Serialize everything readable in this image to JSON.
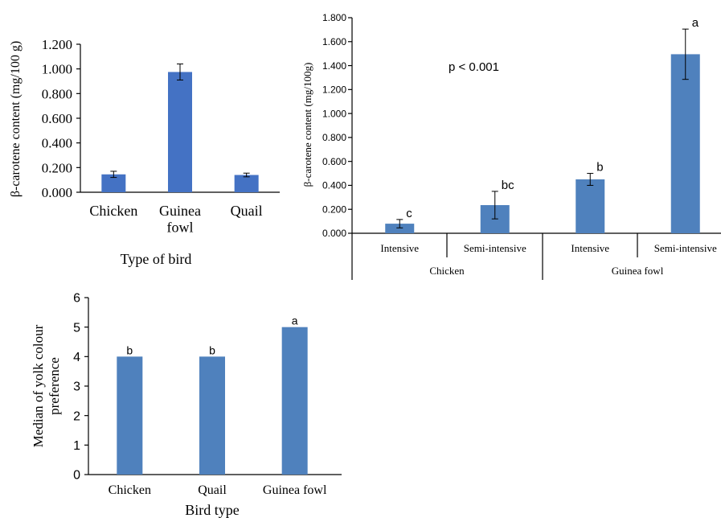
{
  "chart_data": [
    {
      "type": "bar",
      "categories": [
        "Chicken",
        "Guinea fowl",
        "Quail"
      ],
      "category_lines": [
        [
          "Chicken"
        ],
        [
          "Guinea",
          "fowl"
        ],
        [
          "Quail"
        ]
      ],
      "values": [
        0.145,
        0.975,
        0.14
      ],
      "errors": [
        0.025,
        0.065,
        0.015
      ],
      "ylim": [
        0,
        1.2
      ],
      "yticks": [
        "0.000",
        "0.200",
        "0.400",
        "0.600",
        "0.800",
        "1.000",
        "1.200"
      ],
      "ytick_values": [
        0,
        0.2,
        0.4,
        0.6,
        0.8,
        1.0,
        1.2
      ],
      "xlabel": "Type of bird",
      "ylabel": "β-carotene content (mg/100 g)",
      "grid": false,
      "color": "#4472C4"
    },
    {
      "type": "bar",
      "groups": [
        "Chicken",
        "Guinea fowl"
      ],
      "categories": [
        "Intensive",
        "Semi-intensive",
        "Intensive",
        "Semi-intensive"
      ],
      "values": [
        0.08,
        0.235,
        0.45,
        1.495
      ],
      "errors": [
        0.035,
        0.115,
        0.05,
        0.21
      ],
      "significance_letters": [
        "c",
        "bc",
        "b",
        "a"
      ],
      "annotation": "p < 0.001",
      "ylim": [
        0,
        1.8
      ],
      "yticks": [
        "0.000",
        "0.200",
        "0.400",
        "0.600",
        "0.800",
        "1.000",
        "1.200",
        "1.400",
        "1.600",
        "1.800"
      ],
      "ytick_values": [
        0,
        0.2,
        0.4,
        0.6,
        0.8,
        1.0,
        1.2,
        1.4,
        1.6,
        1.8
      ],
      "xlabel": "",
      "ylabel": "β-carotene content (mg/100g)",
      "grid": false,
      "color": "#4F81BD"
    },
    {
      "type": "bar",
      "categories": [
        "Chicken",
        "Quail",
        "Guinea fowl"
      ],
      "values": [
        4,
        4,
        5
      ],
      "significance_letters": [
        "b",
        "b",
        "a"
      ],
      "ylim": [
        0,
        6
      ],
      "yticks": [
        "0",
        "1",
        "2",
        "3",
        "4",
        "5",
        "6"
      ],
      "ytick_values": [
        0,
        1,
        2,
        3,
        4,
        5,
        6
      ],
      "xlabel": "Bird type",
      "ylabel_lines": [
        "Median of yolk colour",
        "preference"
      ],
      "grid": false,
      "color": "#4F81BD"
    }
  ]
}
